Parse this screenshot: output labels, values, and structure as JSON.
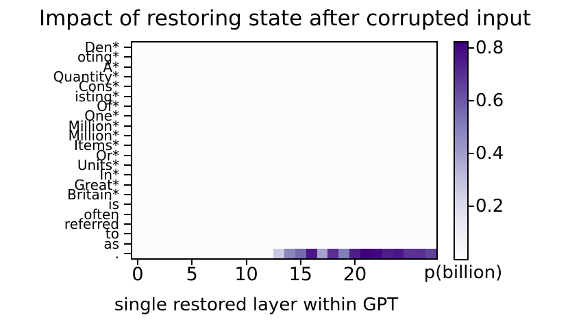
{
  "title": "Impact of restoring state after corrupted input",
  "x_axis": {
    "label": "single restored layer within GPT",
    "tick_layers": [
      0,
      5,
      10,
      15,
      20
    ],
    "tick_labels": [
      "0",
      "5",
      "10",
      "15",
      "20"
    ]
  },
  "y_axis": {
    "tokens": [
      "Den*",
      "oting*",
      "A*",
      "Quantity*",
      "Cons*",
      "isting*",
      "Of*",
      "One*",
      "Million*",
      "Million*",
      "Items*",
      "Or*",
      "Units*",
      "In*",
      "Great*",
      "Britain*",
      "is",
      "often",
      "referred",
      "to",
      "as",
      "."
    ]
  },
  "colorbar": {
    "label": "p(billion)",
    "tick_values": [
      0.2,
      0.4,
      0.6,
      0.8
    ],
    "tick_labels": [
      "0.2",
      "0.4",
      "0.6",
      "0.8"
    ],
    "vmin": 0,
    "vmax": 0.82
  },
  "chart_data": {
    "type": "heatmap",
    "title": "Impact of restoring state after corrupted input",
    "xlabel": "single restored layer within GPT",
    "colorbar_label": "p(billion)",
    "n_layers": 28,
    "x_range": [
      0,
      27
    ],
    "x_ticks": [
      0,
      5,
      10,
      15,
      20
    ],
    "tokens": [
      "Den*",
      "oting*",
      "A*",
      "Quantity*",
      "Cons*",
      "isting*",
      "Of*",
      "One*",
      "Million*",
      "Million*",
      "Items*",
      "Or*",
      "Units*",
      "In*",
      "Great*",
      "Britain*",
      "is",
      "often",
      "referred",
      "to",
      "as",
      "."
    ],
    "corrupted_tokens_marked_with_asterisk": 16,
    "default_cell_value": 0.0,
    "highlight_row": {
      "token": ".",
      "row_index": 21,
      "values": [
        0,
        0,
        0,
        0,
        0,
        0,
        0,
        0,
        0,
        0,
        0,
        0,
        0,
        0.26,
        0.48,
        0.56,
        0.76,
        0.39,
        0.7,
        0.51,
        0.74,
        0.82,
        0.8,
        0.74,
        0.76,
        0.69,
        0.7,
        0.65
      ]
    },
    "vmin": 0,
    "vmax": 0.82,
    "colorbar_ticks": [
      0.2,
      0.4,
      0.6,
      0.8
    ],
    "colormap": "Purples",
    "colormap_stops": [
      [
        0.0,
        "#fcfbfd"
      ],
      [
        0.125,
        "#efedf5"
      ],
      [
        0.25,
        "#dadaeb"
      ],
      [
        0.375,
        "#bcbddc"
      ],
      [
        0.5,
        "#9e9ac8"
      ],
      [
        0.625,
        "#807dba"
      ],
      [
        0.75,
        "#6a51a3"
      ],
      [
        0.875,
        "#54278f"
      ],
      [
        1.0,
        "#3f007d"
      ]
    ],
    "grid": false,
    "legend": "colorbar-right"
  }
}
